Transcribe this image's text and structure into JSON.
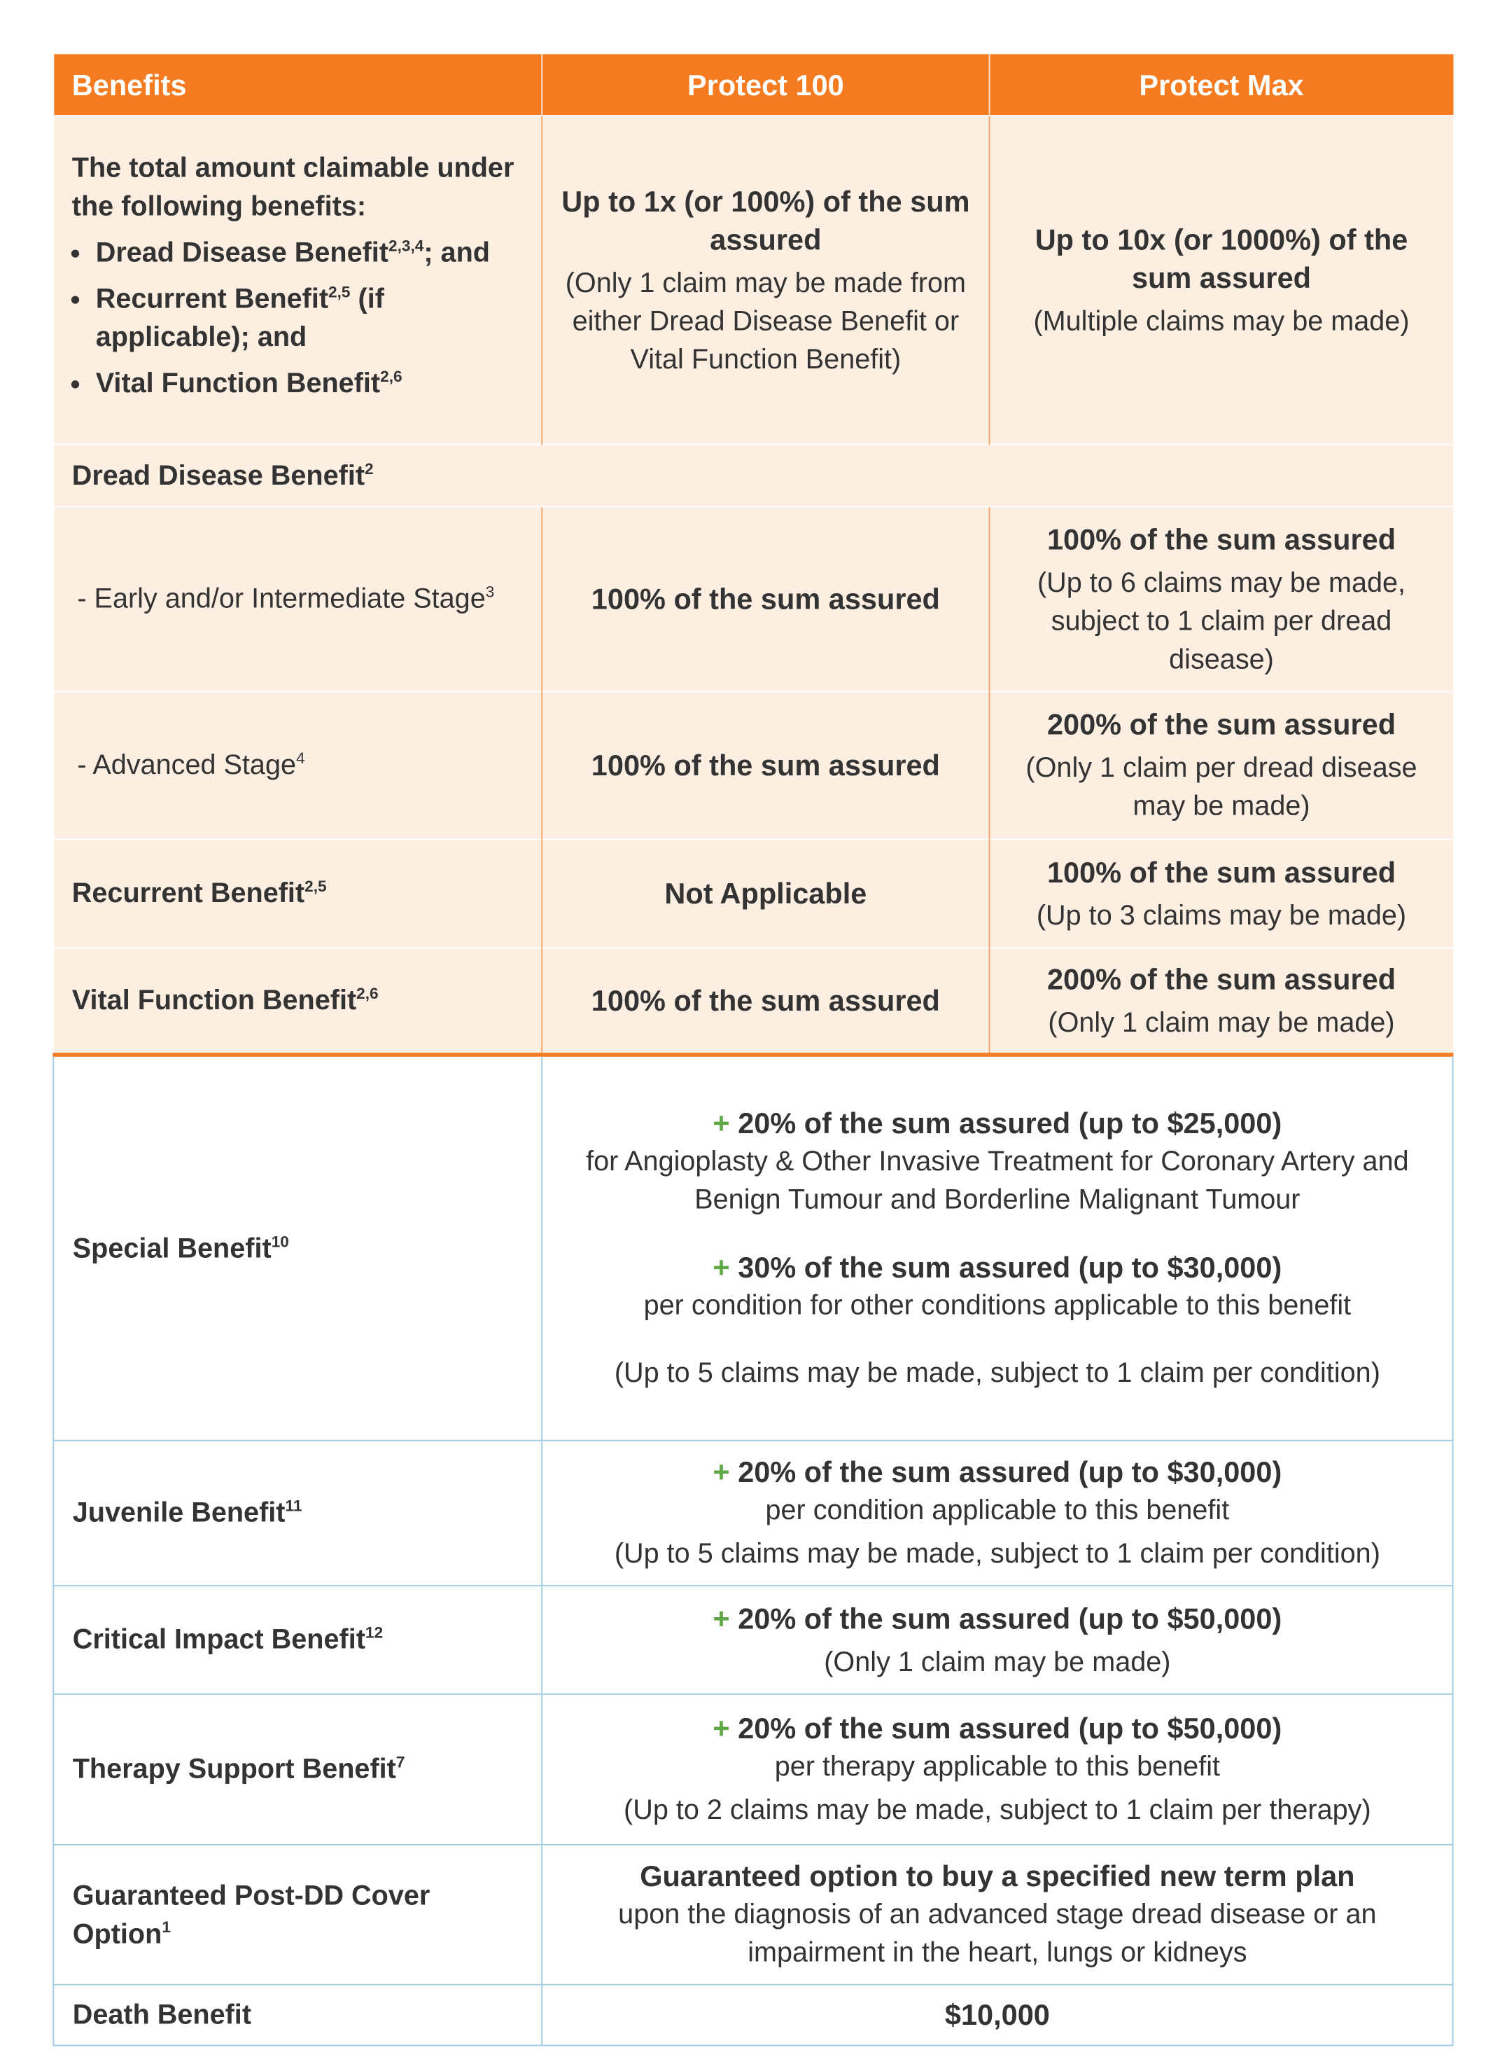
{
  "header": [
    "Benefits",
    "Protect 100",
    "Protect Max"
  ],
  "orange_rows": [
    {
      "label": "The total amount claimable under the following benefits:",
      "bullets": [
        {
          "text": "Dread Disease Benefit",
          "sup": "2,3,4",
          "tail": "; and"
        },
        {
          "text": "Recurrent Benefit",
          "sup": "2,5",
          "tail": " (if applicable); and"
        },
        {
          "text": "Vital Function Benefit",
          "sup": "2,6"
        }
      ],
      "cells": [
        {
          "bold": "Up to 1x (or 100%) of the sum assured",
          "note": "(Only 1 claim may be made from either Dread Disease Benefit or Vital Function Benefit)"
        },
        {
          "bold": "Up to 10x (or 1000%) of the sum assured",
          "note": "(Multiple claims may be made)"
        }
      ]
    },
    {
      "section": "Dread Disease Benefit",
      "sup": "2"
    },
    {
      "label": "- Early and/or Intermediate Stage",
      "sup": "3",
      "cells": [
        {
          "bold": "100% of the sum assured"
        },
        {
          "bold": "100% of the sum assured",
          "note": "(Up to 6 claims may be made, subject to 1 claim per dread disease)"
        }
      ]
    },
    {
      "label": "- Advanced Stage",
      "sup": "4",
      "cells": [
        {
          "bold": "100% of the sum assured"
        },
        {
          "bold": "200% of the sum assured",
          "note": "(Only 1 claim per dread disease may be made)"
        }
      ]
    },
    {
      "label": "Recurrent Benefit",
      "sup": "2,5",
      "cells": [
        {
          "bold": "Not Applicable"
        },
        {
          "bold": "100% of the sum assured",
          "note": "(Up to 3 claims may be made)"
        }
      ]
    },
    {
      "label": "Vital Function Benefit",
      "sup": "2,6",
      "cells": [
        {
          "bold": "100% of the sum assured"
        },
        {
          "bold": "200% of the sum assured",
          "note": "(Only 1 claim may be made)"
        }
      ]
    }
  ],
  "blue_rows": [
    {
      "label": "Special Benefit",
      "sup": "10",
      "content": [
        {
          "plus": "+",
          "bold": "20% of the sum assured (up to $25,000)",
          "text": "for Angioplasty & Other Invasive Treatment for Coronary Artery and Benign Tumour and Borderline Malignant Tumour"
        },
        {
          "plus": "+",
          "bold": "30% of the sum assured (up to $30,000)",
          "text": "per condition for other conditions applicable to this benefit"
        },
        {
          "note": "(Up to 5 claims may be made, subject to 1 claim per condition)"
        }
      ]
    },
    {
      "label": "Juvenile Benefit",
      "sup": "11",
      "content": [
        {
          "plus": "+",
          "bold": "20% of the sum assured (up to $30,000)",
          "text": "per condition applicable to this benefit",
          "note": "(Up to 5 claims may be made, subject to 1 claim per condition)"
        }
      ]
    },
    {
      "label": "Critical Impact Benefit",
      "sup": "12",
      "content": [
        {
          "plus": "+",
          "bold": "20% of the sum assured (up to $50,000)",
          "note": "(Only 1 claim may be made)"
        }
      ]
    },
    {
      "label": "Therapy Support Benefit",
      "sup": "7",
      "content": [
        {
          "plus": "+",
          "bold": "20% of the sum assured (up to $50,000)",
          "text": "per therapy applicable to this benefit",
          "note": "(Up to 2 claims may be made, subject to 1 claim per therapy)"
        }
      ]
    },
    {
      "label": "Guaranteed Post-DD Cover Option",
      "sup": "1",
      "content": [
        {
          "bold": "Guaranteed option to buy a specified new term plan",
          "text": "upon the diagnosis of an advanced stage dread disease or an impairment in the heart, lungs or kidneys"
        }
      ]
    },
    {
      "label": "Death Benefit",
      "content": [
        {
          "bold": "$10,000"
        }
      ]
    }
  ]
}
